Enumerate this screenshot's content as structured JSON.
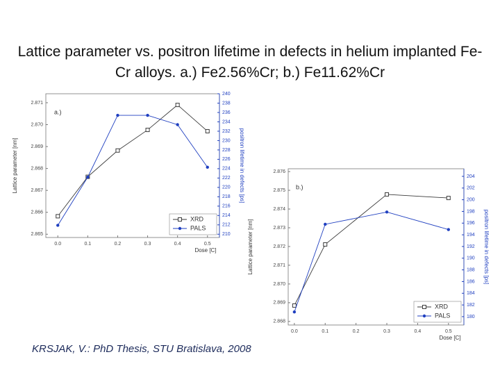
{
  "title": "Lattice parameter vs. positron lifetime in defects in helium implanted Fe-Cr alloys. a.) Fe2.56%Cr; b.) Fe11.62%Cr",
  "citation": "KRSJAK, V.: PhD Thesis, STU Bratislava, 2008",
  "chart_data": [
    {
      "type": "line",
      "panel_label": "a.)",
      "x_label": "Dose [C]",
      "y_label": "Lattice parameter [nm]",
      "y2_label": "positron lifetime in defects [ps]",
      "x": [
        0,
        0.1,
        0.2,
        0.3,
        0.4,
        0.5
      ],
      "xlim": [
        -0.04,
        0.54
      ],
      "xticks": [
        {
          "value": 0,
          "label": "0.0"
        },
        0.1,
        0.2,
        0.3,
        0.4,
        0.5
      ],
      "ylim": [
        2.86485,
        2.87141
      ],
      "yticks": [
        {
          "value": 2.865,
          "label": "2.865"
        },
        {
          "value": 2.866,
          "label": "2.866"
        },
        {
          "value": 2.867,
          "label": "2.867"
        },
        {
          "value": 2.868,
          "label": "2.868"
        },
        {
          "value": 2.869,
          "label": "2.869"
        },
        {
          "value": 2.87,
          "label": "2.870"
        },
        2.871
      ],
      "y2lim": [
        209.3,
        240
      ],
      "y2ticks": [
        210,
        212,
        214,
        216,
        218,
        220,
        222,
        224,
        226,
        228,
        230,
        232,
        234,
        236,
        238,
        240
      ],
      "legend": "lower right",
      "series": [
        {
          "name": "XRD",
          "color": "#3a3a3a",
          "marker": "square",
          "values": [
            2.86582,
            2.86762,
            2.86882,
            2.86976,
            2.8709,
            2.8697
          ]
        },
        {
          "name": "PALS",
          "color": "#1f3fc0",
          "marker": "circle",
          "axis": "y2",
          "values": [
            211.9,
            222.2,
            235.4,
            235.4,
            233.4,
            224.3
          ]
        }
      ]
    },
    {
      "type": "line",
      "panel_label": "b.)",
      "x_label": "Dose [C]",
      "y_label": "Lattice parameter [nm]",
      "y2_label": "positron lifetime in defects [ps]",
      "x": [
        0,
        0.1,
        0.3,
        0.5
      ],
      "xlim": [
        -0.02,
        0.55
      ],
      "xticks": [
        {
          "value": 0,
          "label": "0.0"
        },
        0.1,
        0.2,
        0.3,
        0.4,
        0.5
      ],
      "ylim": [
        2.86781,
        2.87615
      ],
      "yticks": [
        2.868,
        2.869,
        {
          "value": 2.87,
          "label": "2.870"
        },
        2.871,
        2.872,
        2.873,
        2.874,
        2.875,
        2.876
      ],
      "y2lim": [
        178.57,
        205.3
      ],
      "y2ticks": [
        180,
        182,
        184,
        186,
        188,
        190,
        192,
        194,
        196,
        198,
        200,
        202,
        204
      ],
      "legend": "lower right",
      "series": [
        {
          "name": "XRD",
          "color": "#3a3a3a",
          "marker": "square",
          "values": [
            2.86885,
            2.87211,
            2.87478,
            2.87459
          ]
        },
        {
          "name": "PALS",
          "color": "#1f3fc0",
          "marker": "circle",
          "axis": "y2",
          "values": [
            180.8,
            195.8,
            197.9,
            194.9
          ]
        }
      ]
    }
  ]
}
